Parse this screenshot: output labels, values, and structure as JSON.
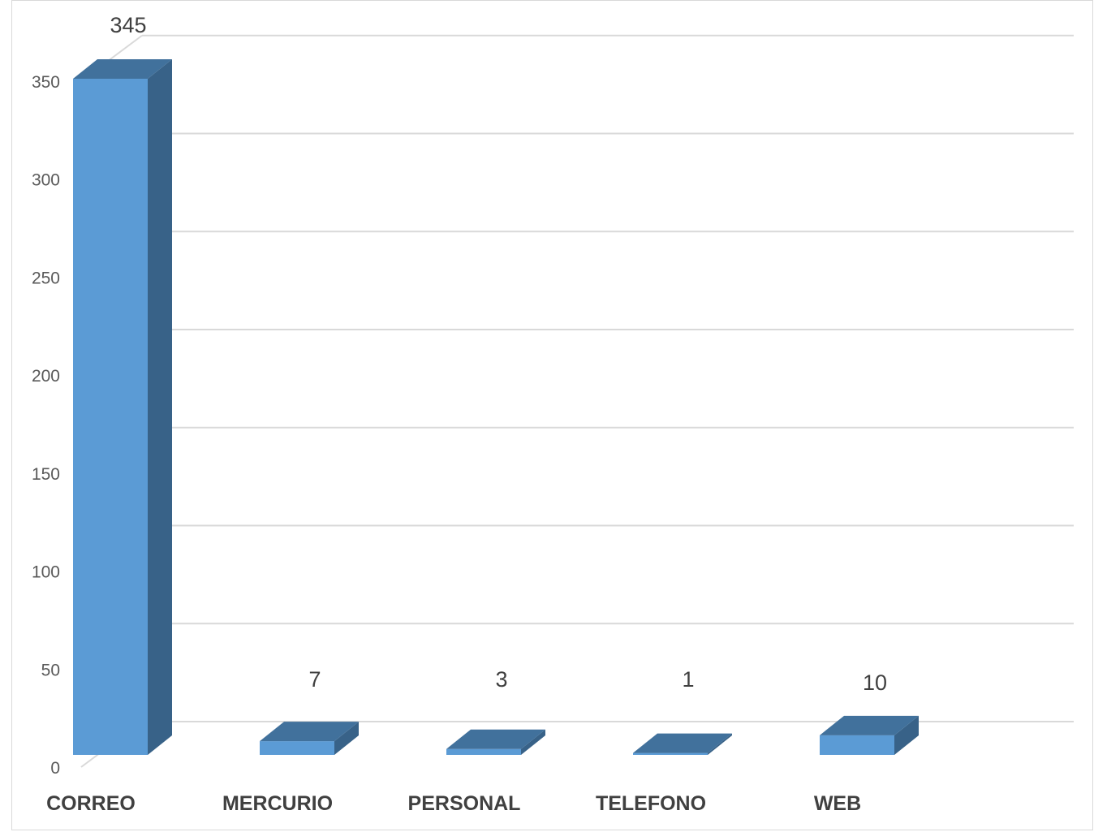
{
  "chart_data": {
    "type": "bar",
    "title": "",
    "xlabel": "",
    "ylabel": "",
    "categories": [
      "CORREO",
      "MERCURIO",
      "PERSONAL",
      "TELEFONO",
      "WEB"
    ],
    "values": [
      345,
      7,
      3,
      1,
      10
    ],
    "data_labels": [
      "345",
      "7",
      "3",
      "1",
      "10"
    ],
    "y_ticks": [
      0,
      50,
      100,
      150,
      200,
      250,
      300,
      350
    ],
    "ylim": [
      0,
      375
    ],
    "grid": true,
    "legend": "none",
    "style": "3d-column",
    "colors": {
      "front": "#5b9bd5",
      "top": "#41719c",
      "side": "#386288",
      "grid": "#d9d9d9",
      "tick_text": "#595959",
      "label_text": "#404040"
    }
  }
}
